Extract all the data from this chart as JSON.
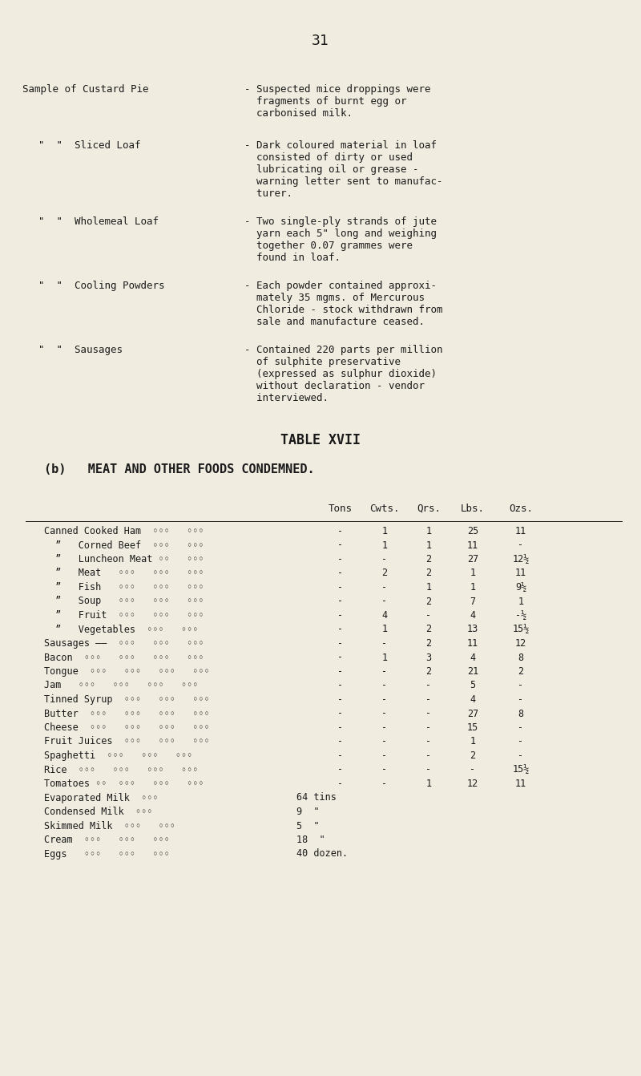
{
  "bg_color": "#f0ece0",
  "text_color": "#1a1a1a",
  "page_number": "31",
  "font_family": "DejaVu Sans Mono",
  "top_section": [
    {
      "label": "Sample of Custard Pie",
      "indent": 0,
      "description": "- Suspected mice droppings were\n  fragments of burnt egg or\n  carbonised milk."
    },
    {
      "label": "”  ”  Sliced Loaf",
      "indent": 1,
      "description": "- Dark coloured material in loaf\n  consisted of dirty or used\n  lubricating oil or grease -\n  warning letter sent to manufac-\n  turer."
    },
    {
      "label": "”  ”  Wholemeal Loaf",
      "indent": 1,
      "description": "- Two single-ply strands of jute\n  yarn each 5\" long and weighing\n  together 0.07 grammes were\n  found in loaf."
    },
    {
      "label": "”  ”  Cooling Powders",
      "indent": 1,
      "description": "- Each powder contained approxi-\n  mately 35 mgms. of Mercurous\n  Chloride - stock withdrawn from\n  sale and manufacture ceased."
    },
    {
      "label": "”  ”  Sausages",
      "indent": 1,
      "description": "- Contained 220 parts per million\n  of sulphite preservative\n  (expressed as sulphur dioxide)\n  without declaration - vendor\n  interviewed."
    }
  ],
  "table_title": "TABLE XVII",
  "table_subtitle": "(b)   MEAT AND OTHER FOODS CONDEMNED.",
  "table_header": [
    "",
    "Tons",
    "Cwts.",
    "Qrs.",
    "Lbs.",
    "Ozs."
  ],
  "table_rows": [
    [
      "Canned Cooked Ham  ◦◦◦   ◦◦◦",
      "-",
      "1",
      "1",
      "25",
      "11"
    ],
    [
      "  ”   Corned Beef  ◦◦◦   ◦◦◦",
      "-",
      "1",
      "1",
      "11",
      "-"
    ],
    [
      "  ”   Luncheon Meat ◦◦   ◦◦◦",
      "-",
      "-",
      "2",
      "27",
      "12½"
    ],
    [
      "  ”   Meat   ◦◦◦   ◦◦◦   ◦◦◦",
      "-",
      "2",
      "2",
      "1",
      "11"
    ],
    [
      "  ”   Fish   ◦◦◦   ◦◦◦   ◦◦◦",
      "-",
      "-",
      "1",
      "1",
      "9½"
    ],
    [
      "  ”   Soup   ◦◦◦   ◦◦◦   ◦◦◦",
      "-",
      "-",
      "2",
      "7",
      "1"
    ],
    [
      "  ”   Fruit  ◦◦◦   ◦◦◦   ◦◦◦",
      "-",
      "4",
      "-",
      "4",
      "-½"
    ],
    [
      "  ”   Vegetables  ◦◦◦   ◦◦◦",
      "-",
      "1",
      "2",
      "13",
      "15½"
    ],
    [
      "Sausages ――  ◦◦◦   ◦◦◦   ◦◦◦",
      "-",
      "-",
      "2",
      "11",
      "12"
    ],
    [
      "Bacon  ◦◦◦   ◦◦◦   ◦◦◦   ◦◦◦",
      "-",
      "1",
      "3",
      "4",
      "8"
    ],
    [
      "Tongue  ◦◦◦   ◦◦◦   ◦◦◦   ◦◦◦",
      "-",
      "-",
      "2",
      "21",
      "2"
    ],
    [
      "Jam   ◦◦◦   ◦◦◦   ◦◦◦   ◦◦◦",
      "-",
      "-",
      "-",
      "5",
      "-"
    ],
    [
      "Tinned Syrup  ◦◦◦   ◦◦◦   ◦◦◦",
      "-",
      "-",
      "-",
      "4",
      "-"
    ],
    [
      "Butter  ◦◦◦   ◦◦◦   ◦◦◦   ◦◦◦",
      "-",
      "-",
      "-",
      "27",
      "8"
    ],
    [
      "Cheese  ◦◦◦   ◦◦◦   ◦◦◦   ◦◦◦",
      "-",
      "-",
      "-",
      "15",
      "-"
    ],
    [
      "Fruit Juices  ◦◦◦   ◦◦◦   ◦◦◦",
      "-",
      "-",
      "-",
      "1",
      "-"
    ],
    [
      "Spaghetti  ◦◦◦   ◦◦◦   ◦◦◦",
      "-",
      "-",
      "-",
      "2",
      "-"
    ],
    [
      "Rice  ◦◦◦   ◦◦◦   ◦◦◦   ◦◦◦",
      "-",
      "-",
      "-",
      "-",
      "15½"
    ],
    [
      "Tomatoes ◦◦  ◦◦◦   ◦◦◦   ◦◦◦",
      "-",
      "-",
      "1",
      "12",
      "11"
    ],
    [
      "Evaporated Milk  ◦◦◦",
      "64 tins",
      "",
      "",
      "",
      ""
    ],
    [
      "Condensed Milk  ◦◦◦",
      "9  \"",
      "",
      "",
      "",
      ""
    ],
    [
      "Skimmed Milk  ◦◦◦   ◦◦◦",
      "5  \"",
      "",
      "",
      "",
      ""
    ],
    [
      "Cream  ◦◦◦   ◦◦◦   ◦◦◦",
      "18  \"",
      "",
      "",
      "",
      ""
    ],
    [
      "Eggs   ◦◦◦   ◦◦◦   ◦◦◦",
      "40 dozen.",
      "",
      "",
      "",
      ""
    ]
  ]
}
